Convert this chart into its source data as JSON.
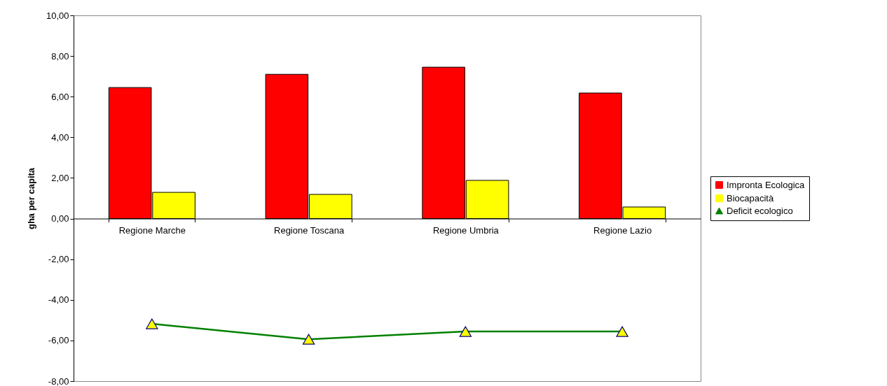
{
  "chart_data": {
    "type": "bar",
    "ylabel": "gha per capita",
    "categories": [
      "Regione Marche",
      "Regione Toscana",
      "Regione Umbria",
      "Regione Lazio"
    ],
    "series": [
      {
        "name": "Impronta Ecologica",
        "color": "#ff0000",
        "values": [
          6.45,
          7.1,
          7.45,
          6.18
        ]
      },
      {
        "name": "Biocapacità",
        "color": "#ffff00",
        "values": [
          1.29,
          1.19,
          1.88,
          0.57
        ]
      },
      {
        "name": "Deficit ecologico",
        "type": "line",
        "color": "#008000",
        "marker": "triangle",
        "line_style": "solid",
        "values": [
          -5.18,
          -5.94,
          -5.56,
          -5.56
        ]
      }
    ],
    "ylim": [
      -8,
      10
    ],
    "yticks": [
      {
        "value": -8,
        "label": "-8,00"
      },
      {
        "value": -6,
        "label": "-6,00"
      },
      {
        "value": -4,
        "label": "-4,00"
      },
      {
        "value": -2,
        "label": "-2,00"
      },
      {
        "value": 0,
        "label": "0,00"
      },
      {
        "value": 2,
        "label": "2,00"
      },
      {
        "value": 4,
        "label": "4,00"
      },
      {
        "value": 6,
        "label": "6,00"
      },
      {
        "value": 8,
        "label": "8,00"
      },
      {
        "value": 10,
        "label": "10,00"
      }
    ],
    "grid": false,
    "legend": "right"
  }
}
